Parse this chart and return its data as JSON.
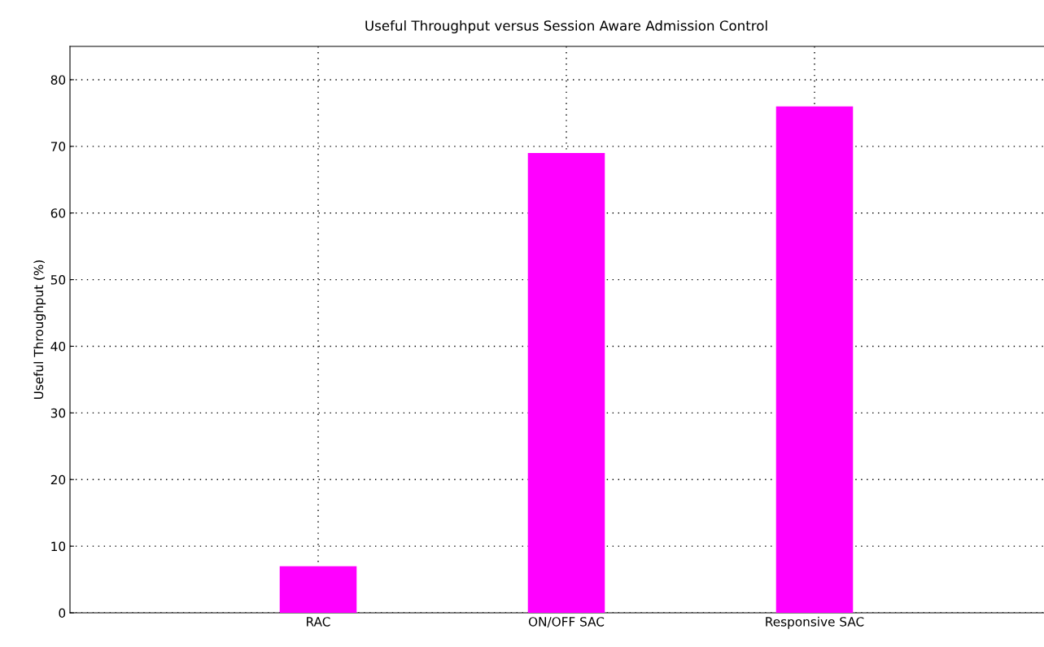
{
  "chart_data": {
    "type": "bar",
    "title": "Useful Throughput versus Session Aware Admission Control",
    "ylabel": "Useful Throughput (%)",
    "categories": [
      "RAC",
      "ON/OFF SAC",
      "Responsive SAC"
    ],
    "values": [
      7,
      69,
      76
    ],
    "color": "#ff00ff",
    "ylim": [
      0,
      85
    ],
    "yticks": [
      0,
      10,
      20,
      30,
      40,
      50,
      60,
      70,
      80
    ],
    "grid": true
  }
}
